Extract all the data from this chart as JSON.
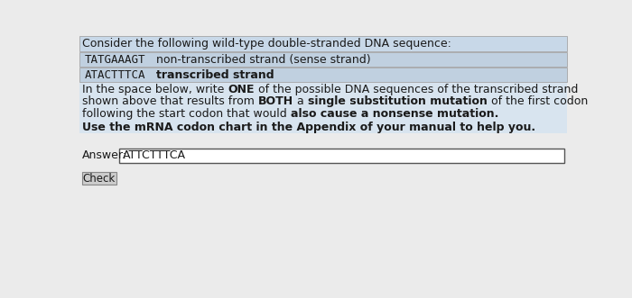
{
  "bg_color": "#ebebeb",
  "panel_bg": "#c8d8e8",
  "strand_box_color": "#c0d0e0",
  "title_text": "Consider the following wild-type double-stranded DNA sequence:",
  "strand1_seq": "TATGAAAGT",
  "strand1_label": "non-transcribed strand (sense strand)",
  "strand2_seq": "ATACTTTCA",
  "strand2_label": "transcribed strand",
  "hint_text": "Use the mRNA codon chart in the Appendix of your manual to help you.",
  "answer_label": "Answer:",
  "answer_value": "ATTCTTTCA",
  "button_text": "Check",
  "answer_box_color": "#ffffff",
  "text_color": "#1a1a1a",
  "hint_bg": "#c8d8e8",
  "body_bg": "#d8e4ef"
}
